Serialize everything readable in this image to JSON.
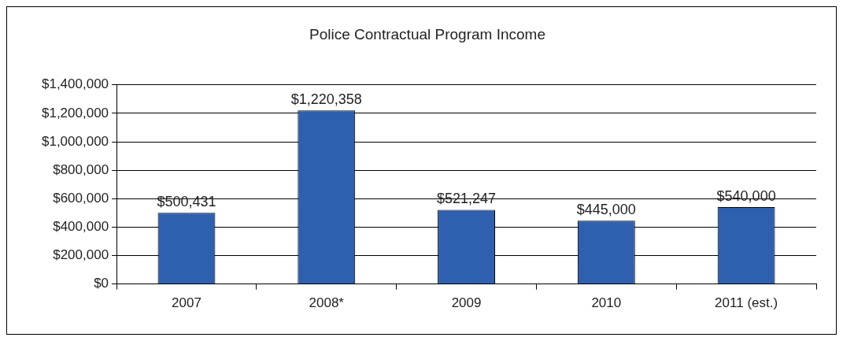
{
  "chart_data": {
    "type": "bar",
    "title": "Police Contractual Program Income",
    "categories": [
      "2007",
      "2008*",
      "2009",
      "2010",
      "2011 (est.)"
    ],
    "values": [
      500431,
      1220358,
      521247,
      445000,
      540000
    ],
    "value_labels": [
      "$500,431",
      "$1,220,358",
      "$521,247",
      "$445,000",
      "$540,000"
    ],
    "color": "#2f5faf",
    "ylim": [
      0,
      1400000
    ],
    "yticks": [
      {
        "value": 0,
        "label": "$0"
      },
      {
        "value": 200000,
        "label": "$200,000"
      },
      {
        "value": 400000,
        "label": "$400,000"
      },
      {
        "value": 600000,
        "label": "$600,000"
      },
      {
        "value": 800000,
        "label": "$800,000"
      },
      {
        "value": 1000000,
        "label": "$1,000,000"
      },
      {
        "value": 1200000,
        "label": "$1,200,000"
      },
      {
        "value": 1400000,
        "label": "$1,400,000"
      }
    ],
    "grid": "y",
    "legend": false
  }
}
